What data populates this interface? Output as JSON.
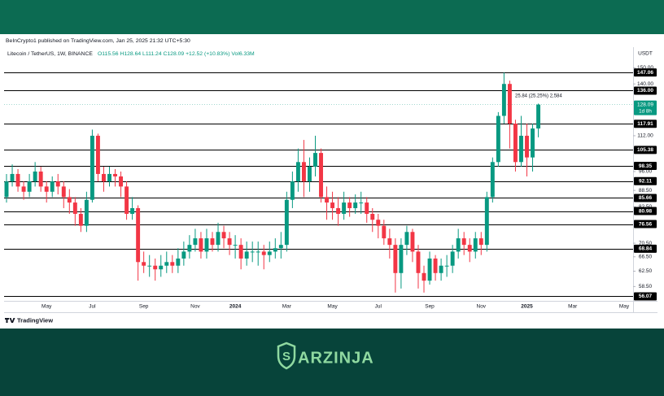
{
  "header": {
    "published": "BeInCrypto1 published on TradingView.com, Jan 25, 2025 21:32 UTC+5:30"
  },
  "chart_data": {
    "type": "candlestick",
    "symbol": "Litecoin / TetherUS, 1W, BINANCE",
    "legend_values": "O115.56 H128.64 L111.24 C128.09 +12.52 (+10.83%) Vol6.33M",
    "currency": "USDT",
    "up_color": "#089981",
    "down_color": "#f23645",
    "log": true,
    "ylim": [
      55,
      154
    ],
    "yticks": [
      {
        "value": 150,
        "label": "150.00"
      },
      {
        "value": 140,
        "label": "140.00"
      },
      {
        "value": 112,
        "label": "112.00"
      },
      {
        "value": 96,
        "label": "96.00"
      },
      {
        "value": 88.5,
        "label": "88.50"
      },
      {
        "value": 82.5,
        "label": "82.50"
      },
      {
        "value": 70.5,
        "label": "70.50"
      },
      {
        "value": 66.5,
        "label": "66.50"
      },
      {
        "value": 62.5,
        "label": "62.50"
      },
      {
        "value": 58.5,
        "label": "58.50"
      }
    ],
    "levels": [
      147.06,
      {
        "value": 136,
        "label": "136.00"
      },
      117.91,
      105.38,
      98.35,
      92.11,
      85.66,
      80.98,
      76.56,
      68.84,
      56.07
    ],
    "level_color": "#000000",
    "current_price": 128.09,
    "countdown": "1d 8h",
    "annotation": "25.84 (25.25%) 2,584",
    "categories": [
      null,
      null,
      null,
      null,
      null,
      null,
      null,
      "May",
      null,
      null,
      null,
      null,
      null,
      null,
      null,
      "Jul",
      null,
      null,
      null,
      null,
      null,
      null,
      null,
      null,
      "Sep",
      null,
      null,
      null,
      null,
      null,
      null,
      null,
      null,
      "Nov",
      null,
      null,
      null,
      null,
      null,
      null,
      "2024",
      null,
      null,
      null,
      null,
      null,
      null,
      null,
      null,
      "Mar",
      null,
      null,
      null,
      null,
      null,
      null,
      null,
      "May",
      null,
      null,
      null,
      null,
      null,
      null,
      null,
      "Jul",
      null,
      null,
      null,
      null,
      null,
      null,
      null,
      null,
      "Sep",
      null,
      null,
      null,
      null,
      null,
      null,
      null,
      null,
      "Nov",
      null,
      null,
      null,
      null,
      null,
      null,
      null,
      "2025",
      null,
      null,
      null,
      null,
      null,
      null,
      null,
      "Mar",
      null,
      null,
      null,
      null,
      null,
      null,
      null,
      null,
      "May",
      null
    ],
    "open": [
      86,
      92,
      95,
      90,
      88,
      92,
      96,
      90,
      88,
      92,
      90,
      86,
      84,
      80,
      76,
      85,
      112,
      95,
      92,
      95,
      94,
      90,
      80,
      82,
      65,
      64,
      64,
      63,
      64,
      65,
      64,
      66,
      68,
      70,
      72,
      68,
      72,
      70,
      74,
      72,
      70,
      70,
      66,
      68,
      68,
      68,
      67,
      68,
      69,
      70,
      85,
      92,
      100,
      92,
      98,
      104,
      86,
      84,
      82,
      80,
      84,
      82,
      84,
      84,
      80,
      78,
      76,
      72,
      70,
      62,
      70,
      74,
      68,
      62,
      60,
      66,
      62,
      64,
      64,
      68,
      72,
      70,
      68,
      72,
      70,
      86,
      100,
      122,
      140,
      118,
      100,
      112,
      102,
      115.56,
      null,
      null,
      null,
      null,
      null,
      null,
      null,
      null,
      null,
      null,
      null,
      null,
      null,
      null,
      null,
      null
    ],
    "high": [
      95,
      99,
      97,
      92,
      95,
      100,
      98,
      92,
      94,
      95,
      92,
      89,
      86,
      82,
      88,
      115,
      113,
      98,
      98,
      97,
      96,
      92,
      86,
      83,
      68,
      67,
      66,
      67,
      68,
      67,
      69,
      71,
      73,
      75,
      74,
      75,
      74,
      77,
      76,
      74,
      73,
      72,
      71,
      71,
      71,
      70,
      71,
      72,
      74,
      88,
      96,
      106,
      110,
      102,
      112,
      106,
      90,
      88,
      86,
      88,
      86,
      87,
      88,
      86,
      82,
      80,
      78,
      75,
      72,
      72,
      76,
      75,
      70,
      64,
      68,
      67,
      66,
      67,
      70,
      75,
      74,
      72,
      74,
      74,
      88,
      102,
      124,
      147,
      142,
      120,
      122,
      118,
      118,
      128.64,
      null,
      null,
      null,
      null,
      null,
      null,
      null,
      null,
      null,
      null,
      null,
      null,
      null,
      null,
      null,
      null
    ],
    "low": [
      84,
      90,
      88,
      85,
      86,
      90,
      88,
      84,
      86,
      87,
      82,
      80,
      76,
      74,
      74,
      84,
      92,
      88,
      90,
      90,
      86,
      78,
      78,
      60,
      62,
      61,
      60,
      61,
      62,
      62,
      62,
      64,
      66,
      68,
      66,
      66,
      68,
      68,
      69,
      67,
      66,
      63,
      64,
      65,
      64,
      63,
      65,
      66,
      66,
      68,
      82,
      88,
      86,
      88,
      94,
      84,
      78,
      78,
      76,
      78,
      79,
      80,
      80,
      77,
      74,
      72,
      70,
      66,
      57,
      58,
      67,
      65,
      58,
      57,
      59,
      60,
      60,
      61,
      62,
      66,
      67,
      65,
      66,
      67,
      68,
      84,
      98,
      118,
      106,
      96,
      98,
      94,
      96,
      111.24,
      null,
      null,
      null,
      null,
      null,
      null,
      null,
      null,
      null,
      null,
      null,
      null,
      null,
      null,
      null,
      null
    ],
    "close": [
      92,
      95,
      90,
      88,
      92,
      96,
      90,
      88,
      92,
      90,
      86,
      84,
      80,
      76,
      85,
      112,
      95,
      92,
      95,
      94,
      90,
      80,
      82,
      65,
      64,
      64,
      63,
      64,
      65,
      64,
      66,
      68,
      70,
      72,
      68,
      72,
      70,
      74,
      72,
      70,
      70,
      66,
      68,
      68,
      68,
      67,
      68,
      69,
      70,
      85,
      92,
      100,
      92,
      98,
      104,
      86,
      84,
      82,
      80,
      84,
      82,
      84,
      84,
      80,
      78,
      76,
      72,
      70,
      62,
      70,
      74,
      68,
      62,
      60,
      66,
      62,
      64,
      64,
      68,
      72,
      70,
      68,
      72,
      70,
      86,
      100,
      122,
      140,
      118,
      100,
      112,
      102,
      115.56,
      128.09,
      null,
      null,
      null,
      null,
      null,
      null,
      null,
      null,
      null,
      null,
      null,
      null,
      null,
      null,
      null,
      null
    ]
  },
  "footer": {
    "platform": "TradingView",
    "brand": "ARZINJA"
  }
}
